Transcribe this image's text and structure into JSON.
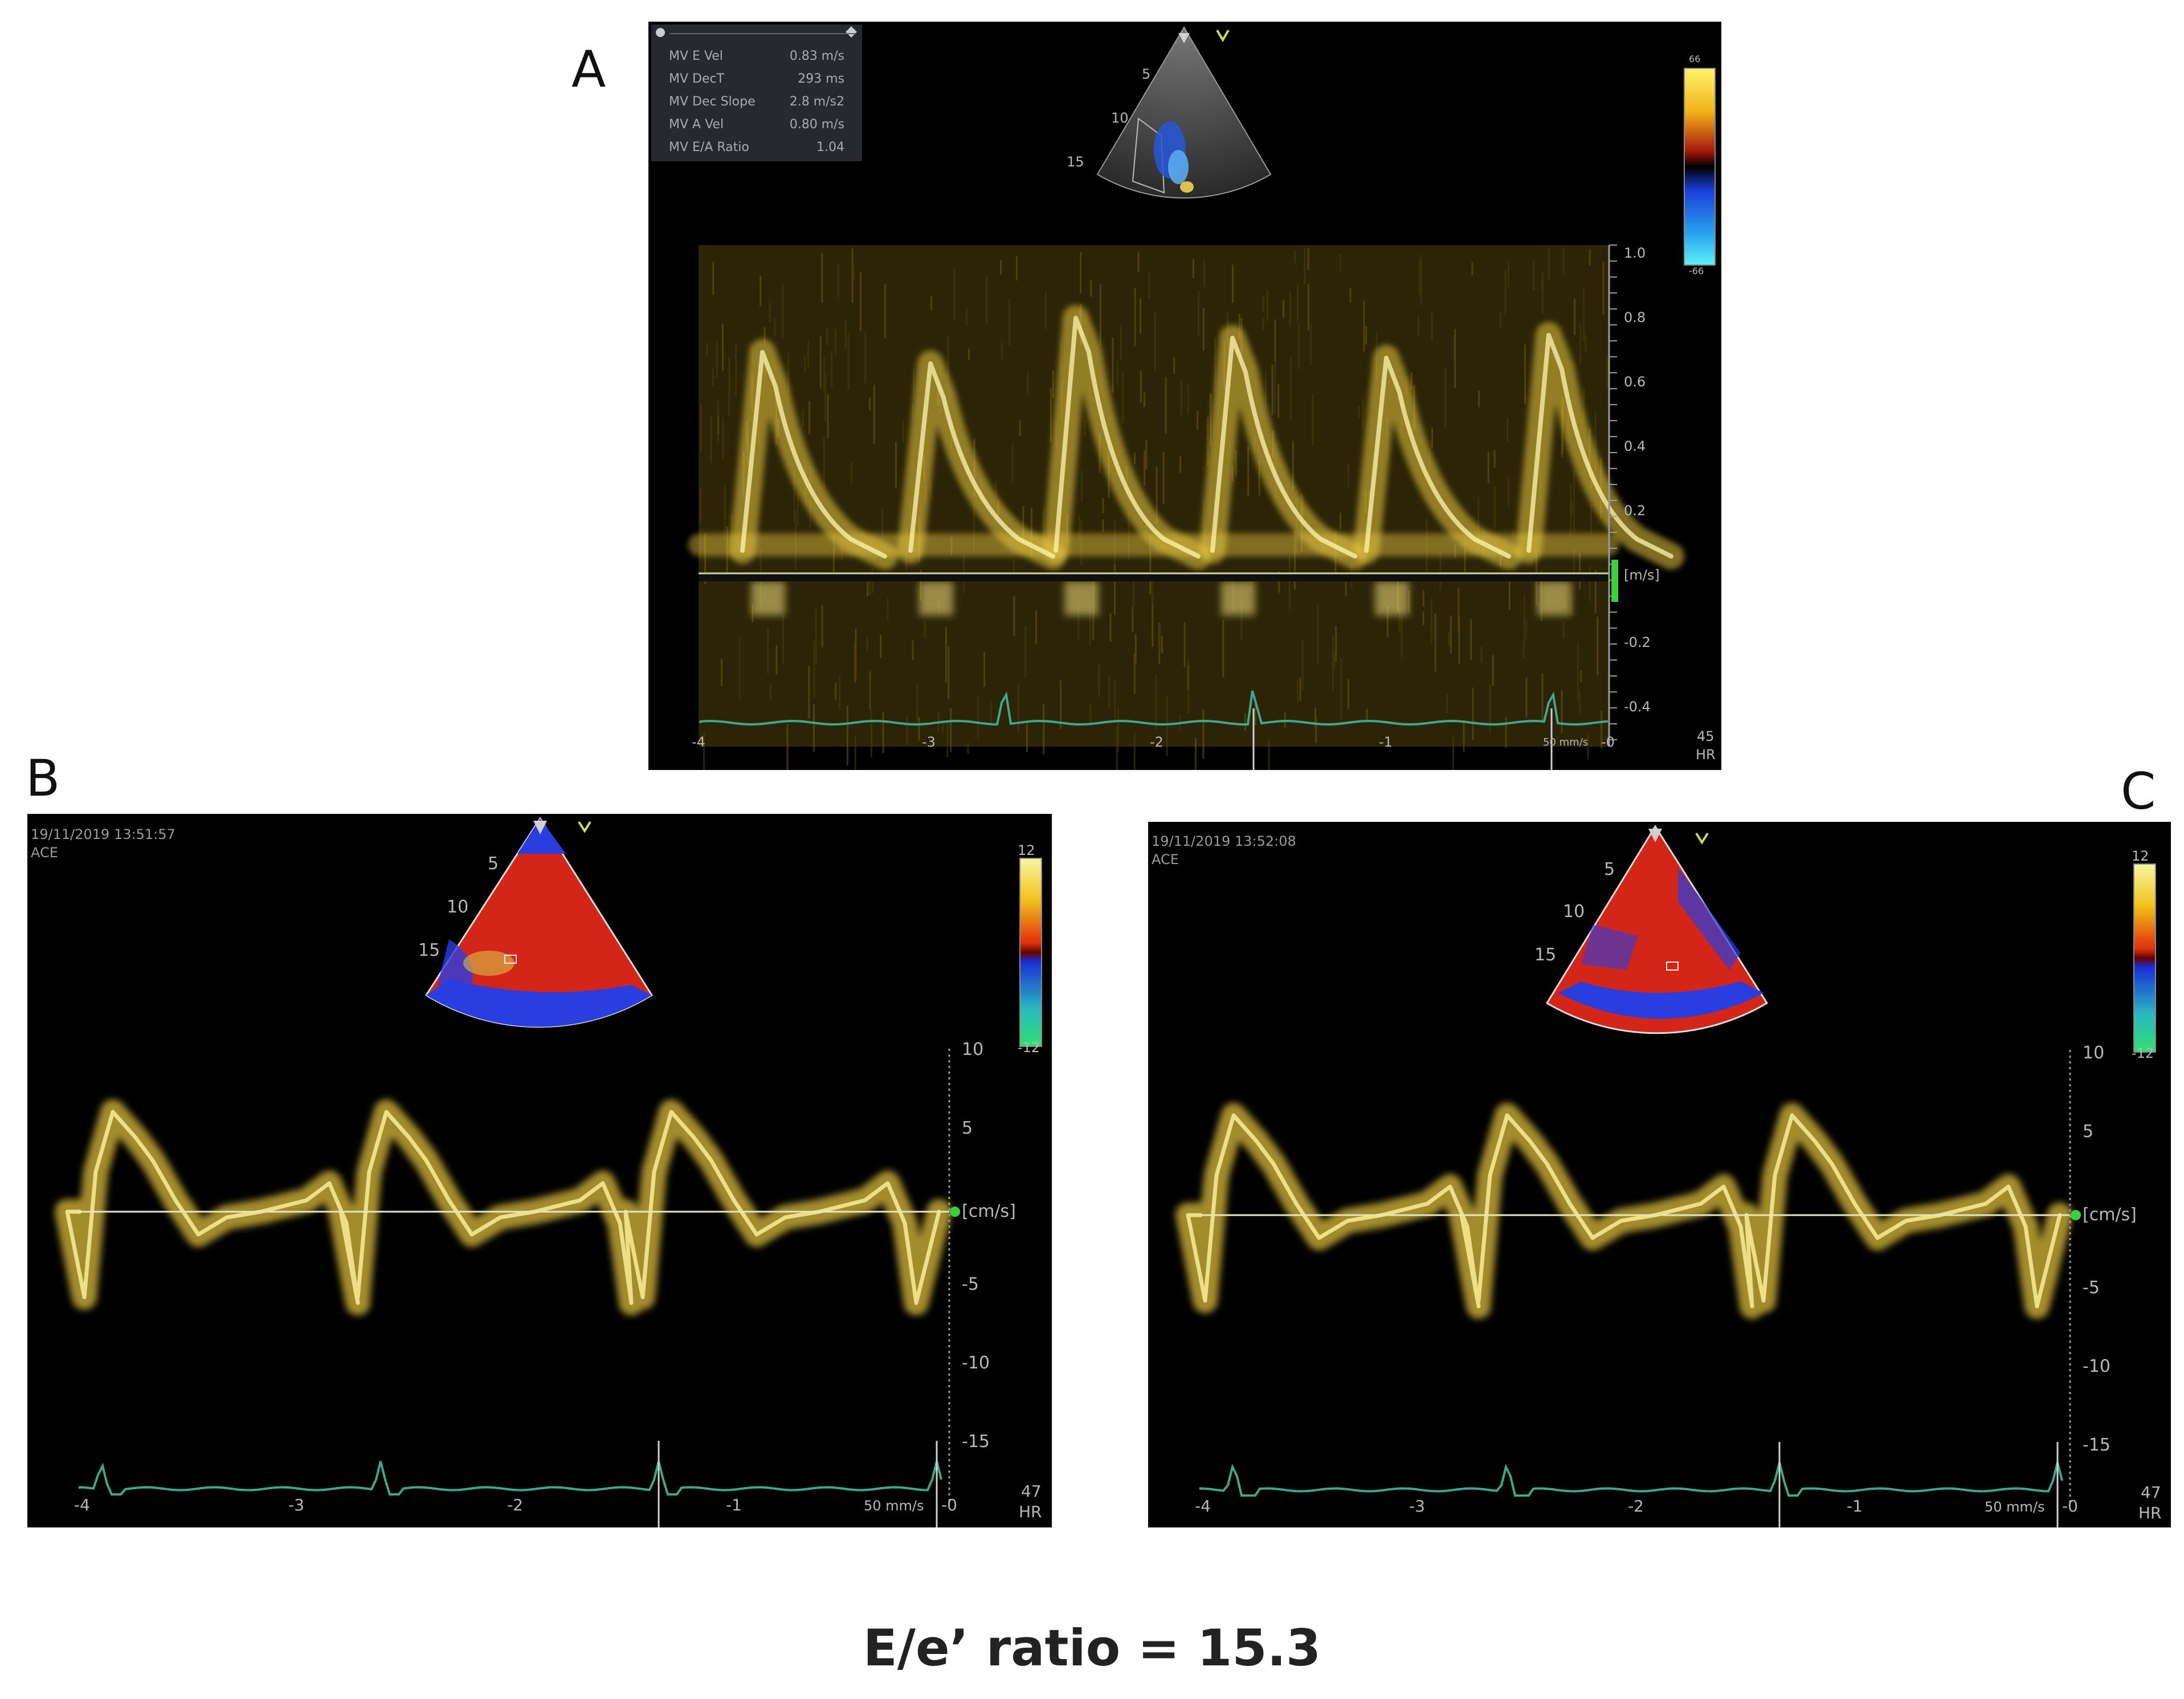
{
  "panel_a": {
    "letter": "A",
    "measurements": [
      {
        "label": "MV E Vel",
        "value": "0.83 m/s"
      },
      {
        "label": "MV DecT",
        "value": "293 ms"
      },
      {
        "label": "MV Dec Slope",
        "value": "2.8 m/s2"
      },
      {
        "label": "MV A Vel",
        "value": "0.80 m/s"
      },
      {
        "label": "MV E/A Ratio",
        "value": "1.04"
      }
    ],
    "depth_labels": [
      "5",
      "10",
      "15"
    ],
    "y_ticks": [
      "1.0",
      "0.8",
      "0.6",
      "0.4",
      "0.2",
      "-0.2",
      "-0.4"
    ],
    "unit": "[m/s]",
    "x_ticks": [
      "-4",
      "-3",
      "-2",
      "-1",
      "-0"
    ],
    "sweep": "50 mm/s",
    "hr_value": "45",
    "hr_label": "HR",
    "marker": "V",
    "colorbar_top": "66",
    "colorbar_bottom": "-66"
  },
  "panel_b": {
    "letter": "B",
    "timestamp": "19/11/2019 13:51:57",
    "mode": "ACE",
    "depth_labels": [
      "5",
      "10",
      "15"
    ],
    "y_ticks": [
      "10",
      "5",
      "-5",
      "-10",
      "-15"
    ],
    "unit": "[cm/s]",
    "x_ticks": [
      "-4",
      "-3",
      "-2",
      "-1",
      "-0"
    ],
    "sweep": "50 mm/s",
    "hr_value": "47",
    "hr_label": "HR",
    "marker": "V",
    "colorbar_top": "12",
    "colorbar_bottom": "-12"
  },
  "panel_c": {
    "letter": "C",
    "timestamp": "19/11/2019 13:52:08",
    "mode": "ACE",
    "depth_labels": [
      "5",
      "10",
      "15"
    ],
    "y_ticks": [
      "10",
      "5",
      "-5",
      "-10",
      "-15"
    ],
    "unit": "[cm/s]",
    "x_ticks": [
      "-4",
      "-3",
      "-2",
      "-1",
      "-0"
    ],
    "sweep": "50 mm/s",
    "hr_value": "47",
    "hr_label": "HR",
    "marker": "V",
    "colorbar_top": "12",
    "colorbar_bottom": "-12"
  },
  "caption": "E/e’ ratio = 15.3",
  "colors": {
    "doppler": "#e8c840",
    "ecg": "#3fa88c",
    "scale_text": "#b8b8b8",
    "green_marker": "#3ad03a"
  }
}
